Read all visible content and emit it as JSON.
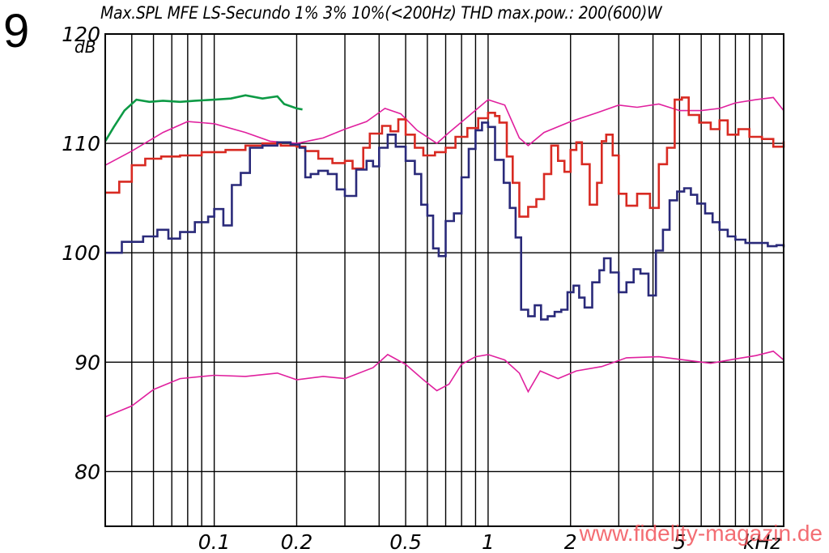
{
  "figure": {
    "number": "9",
    "watermark": "www.fidelity-magazin.de"
  },
  "chart_data": {
    "type": "line",
    "title": "Max.SPL MFE LS-Secundo 1% 3% 10%(<200Hz) THD max.pow.: 200(600)W",
    "ylabel": "dB",
    "xlabel": "",
    "x_scale": "log",
    "x_unit": "kHz",
    "xlim": [
      0.04,
      12
    ],
    "ylim": [
      75,
      120
    ],
    "grid": true,
    "yticks": [
      {
        "value": 120,
        "label": "120"
      },
      {
        "value": 110,
        "label": "110"
      },
      {
        "value": 100,
        "label": "100"
      },
      {
        "value": 90,
        "label": "90"
      },
      {
        "value": 80,
        "label": "80"
      }
    ],
    "xticks": [
      {
        "value": 0.1,
        "label": "0.1"
      },
      {
        "value": 0.2,
        "label": "0.2"
      },
      {
        "value": 0.5,
        "label": "0.5"
      },
      {
        "value": 1,
        "label": "1"
      },
      {
        "value": 2,
        "label": "2"
      },
      {
        "value": 5,
        "label": "5"
      },
      {
        "value": 10,
        "label": "kHz"
      }
    ],
    "series": [
      {
        "color": "#e0209e",
        "style": "line",
        "points": [
          [
            0.04,
            108
          ],
          [
            0.05,
            109.3
          ],
          [
            0.065,
            111
          ],
          [
            0.08,
            112
          ],
          [
            0.1,
            111.8
          ],
          [
            0.13,
            111
          ],
          [
            0.16,
            110.2
          ],
          [
            0.2,
            110
          ],
          [
            0.25,
            110.5
          ],
          [
            0.3,
            111.3
          ],
          [
            0.36,
            112
          ],
          [
            0.42,
            113.2
          ],
          [
            0.48,
            112.7
          ],
          [
            0.55,
            111.2
          ],
          [
            0.65,
            110
          ],
          [
            0.72,
            111
          ],
          [
            0.85,
            112.5
          ],
          [
            1.0,
            114
          ],
          [
            1.15,
            113.5
          ],
          [
            1.3,
            110.5
          ],
          [
            1.4,
            109.8
          ],
          [
            1.6,
            111
          ],
          [
            2.0,
            112
          ],
          [
            2.5,
            112.8
          ],
          [
            3.0,
            113.5
          ],
          [
            3.5,
            113.3
          ],
          [
            4.2,
            113.6
          ],
          [
            5.0,
            113
          ],
          [
            6.0,
            113
          ],
          [
            7.0,
            113.2
          ],
          [
            8.0,
            113.7
          ],
          [
            9.5,
            114
          ],
          [
            11,
            114.2
          ],
          [
            12,
            113
          ]
        ]
      },
      {
        "color": "#e0209e",
        "style": "line",
        "points": [
          [
            0.04,
            85
          ],
          [
            0.05,
            86
          ],
          [
            0.06,
            87.5
          ],
          [
            0.075,
            88.5
          ],
          [
            0.1,
            88.8
          ],
          [
            0.13,
            88.7
          ],
          [
            0.17,
            89
          ],
          [
            0.2,
            88.4
          ],
          [
            0.25,
            88.7
          ],
          [
            0.3,
            88.5
          ],
          [
            0.38,
            89.5
          ],
          [
            0.43,
            90.7
          ],
          [
            0.5,
            89.8
          ],
          [
            0.58,
            88.4
          ],
          [
            0.65,
            87.4
          ],
          [
            0.72,
            88
          ],
          [
            0.8,
            89.8
          ],
          [
            0.9,
            90.5
          ],
          [
            1.0,
            90.7
          ],
          [
            1.15,
            90.2
          ],
          [
            1.3,
            89
          ],
          [
            1.4,
            87.3
          ],
          [
            1.55,
            89.2
          ],
          [
            1.8,
            88.5
          ],
          [
            2.1,
            89.2
          ],
          [
            2.6,
            89.6
          ],
          [
            3.2,
            90.4
          ],
          [
            4.2,
            90.5
          ],
          [
            5.2,
            90.2
          ],
          [
            6.5,
            89.9
          ],
          [
            8.0,
            90.3
          ],
          [
            9.5,
            90.6
          ],
          [
            11,
            91
          ],
          [
            12,
            90.2
          ]
        ]
      },
      {
        "color": "#0d9a45",
        "style": "line",
        "points": [
          [
            0.04,
            110.2
          ],
          [
            0.043,
            111.5
          ],
          [
            0.047,
            113
          ],
          [
            0.052,
            114
          ],
          [
            0.058,
            113.8
          ],
          [
            0.065,
            113.9
          ],
          [
            0.075,
            113.8
          ],
          [
            0.085,
            113.9
          ],
          [
            0.1,
            114
          ],
          [
            0.115,
            114.1
          ],
          [
            0.13,
            114.4
          ],
          [
            0.15,
            114.1
          ],
          [
            0.17,
            114.3
          ],
          [
            0.18,
            113.6
          ],
          [
            0.2,
            113.2
          ],
          [
            0.21,
            113.1
          ]
        ]
      },
      {
        "color": "#d82a22",
        "style": "step",
        "points": [
          [
            0.04,
            105.5
          ],
          [
            0.045,
            106.5
          ],
          [
            0.05,
            108
          ],
          [
            0.056,
            108.6
          ],
          [
            0.064,
            108.8
          ],
          [
            0.075,
            108.9
          ],
          [
            0.09,
            109.2
          ],
          [
            0.11,
            109.4
          ],
          [
            0.13,
            109.8
          ],
          [
            0.15,
            110
          ],
          [
            0.175,
            109.8
          ],
          [
            0.2,
            109.7
          ],
          [
            0.215,
            109.3
          ],
          [
            0.24,
            108.6
          ],
          [
            0.27,
            108.2
          ],
          [
            0.3,
            108.4
          ],
          [
            0.32,
            107.7
          ],
          [
            0.35,
            109.6
          ],
          [
            0.37,
            110.9
          ],
          [
            0.41,
            111.6
          ],
          [
            0.44,
            111.1
          ],
          [
            0.47,
            112.2
          ],
          [
            0.5,
            110.8
          ],
          [
            0.54,
            109.6
          ],
          [
            0.58,
            108.9
          ],
          [
            0.64,
            109.2
          ],
          [
            0.7,
            109.6
          ],
          [
            0.76,
            110.6
          ],
          [
            0.84,
            111.4
          ],
          [
            0.92,
            112.3
          ],
          [
            1.0,
            112.8
          ],
          [
            1.06,
            112.5
          ],
          [
            1.1,
            111.9
          ],
          [
            1.17,
            108.8
          ],
          [
            1.23,
            106.4
          ],
          [
            1.3,
            103.3
          ],
          [
            1.4,
            104.2
          ],
          [
            1.5,
            104.9
          ],
          [
            1.6,
            107.2
          ],
          [
            1.7,
            109.8
          ],
          [
            1.8,
            108.4
          ],
          [
            1.9,
            107.4
          ],
          [
            2.0,
            109.4
          ],
          [
            2.1,
            110.1
          ],
          [
            2.2,
            108.1
          ],
          [
            2.35,
            104.4
          ],
          [
            2.5,
            106.4
          ],
          [
            2.6,
            110.2
          ],
          [
            2.7,
            110.8
          ],
          [
            2.85,
            108.9
          ],
          [
            3.0,
            105.4
          ],
          [
            3.2,
            104.3
          ],
          [
            3.5,
            105.4
          ],
          [
            3.9,
            104.1
          ],
          [
            4.2,
            108.1
          ],
          [
            4.5,
            109.6
          ],
          [
            4.8,
            114
          ],
          [
            5.1,
            114.2
          ],
          [
            5.4,
            112.6
          ],
          [
            5.9,
            111.9
          ],
          [
            6.5,
            111.3
          ],
          [
            7.0,
            112.1
          ],
          [
            7.5,
            110.8
          ],
          [
            8.2,
            111.3
          ],
          [
            9.0,
            110.6
          ],
          [
            10.0,
            110.4
          ],
          [
            11.0,
            109.7
          ],
          [
            12,
            110.2
          ]
        ]
      },
      {
        "color": "#2a2a7a",
        "style": "step",
        "points": [
          [
            0.04,
            100
          ],
          [
            0.046,
            101
          ],
          [
            0.055,
            101.5
          ],
          [
            0.062,
            102.1
          ],
          [
            0.068,
            101.3
          ],
          [
            0.075,
            101.9
          ],
          [
            0.085,
            102.8
          ],
          [
            0.095,
            103.3
          ],
          [
            0.1,
            104
          ],
          [
            0.108,
            102.5
          ],
          [
            0.116,
            106.2
          ],
          [
            0.125,
            107.3
          ],
          [
            0.135,
            109.6
          ],
          [
            0.15,
            109.8
          ],
          [
            0.17,
            110.1
          ],
          [
            0.19,
            109.9
          ],
          [
            0.205,
            109.6
          ],
          [
            0.215,
            106.9
          ],
          [
            0.225,
            107.2
          ],
          [
            0.24,
            107.5
          ],
          [
            0.26,
            107.2
          ],
          [
            0.28,
            105.8
          ],
          [
            0.3,
            105.2
          ],
          [
            0.33,
            107.6
          ],
          [
            0.36,
            108.4
          ],
          [
            0.38,
            107.9
          ],
          [
            0.4,
            109.6
          ],
          [
            0.43,
            110.8
          ],
          [
            0.46,
            109.7
          ],
          [
            0.5,
            108.4
          ],
          [
            0.54,
            107.2
          ],
          [
            0.57,
            104.4
          ],
          [
            0.6,
            103.4
          ],
          [
            0.63,
            100.4
          ],
          [
            0.66,
            99.7
          ],
          [
            0.7,
            102.9
          ],
          [
            0.75,
            103.6
          ],
          [
            0.8,
            106.9
          ],
          [
            0.85,
            109.5
          ],
          [
            0.9,
            111.2
          ],
          [
            0.95,
            111.9
          ],
          [
            1.0,
            111.5
          ],
          [
            1.06,
            108.5
          ],
          [
            1.14,
            106.4
          ],
          [
            1.2,
            104.1
          ],
          [
            1.26,
            101.4
          ],
          [
            1.32,
            94.8
          ],
          [
            1.4,
            94.2
          ],
          [
            1.48,
            95.2
          ],
          [
            1.56,
            93.9
          ],
          [
            1.65,
            94.2
          ],
          [
            1.75,
            94.6
          ],
          [
            1.85,
            94.8
          ],
          [
            1.95,
            96.4
          ],
          [
            2.05,
            97
          ],
          [
            2.15,
            95.9
          ],
          [
            2.25,
            95
          ],
          [
            2.4,
            97.3
          ],
          [
            2.55,
            98.4
          ],
          [
            2.65,
            99.5
          ],
          [
            2.8,
            98.2
          ],
          [
            3.0,
            96.4
          ],
          [
            3.2,
            97.3
          ],
          [
            3.4,
            98.5
          ],
          [
            3.6,
            98.1
          ],
          [
            3.85,
            96.1
          ],
          [
            4.1,
            100.2
          ],
          [
            4.35,
            102.1
          ],
          [
            4.6,
            104.8
          ],
          [
            4.9,
            105.6
          ],
          [
            5.2,
            105.9
          ],
          [
            5.5,
            105.3
          ],
          [
            5.8,
            104.5
          ],
          [
            6.2,
            103.6
          ],
          [
            6.6,
            102.8
          ],
          [
            7.0,
            102.1
          ],
          [
            7.5,
            101.5
          ],
          [
            8.0,
            101.2
          ],
          [
            8.7,
            100.9
          ],
          [
            9.5,
            100.9
          ],
          [
            10.5,
            100.6
          ],
          [
            11.3,
            100.7
          ],
          [
            12,
            100.5
          ]
        ]
      }
    ]
  }
}
